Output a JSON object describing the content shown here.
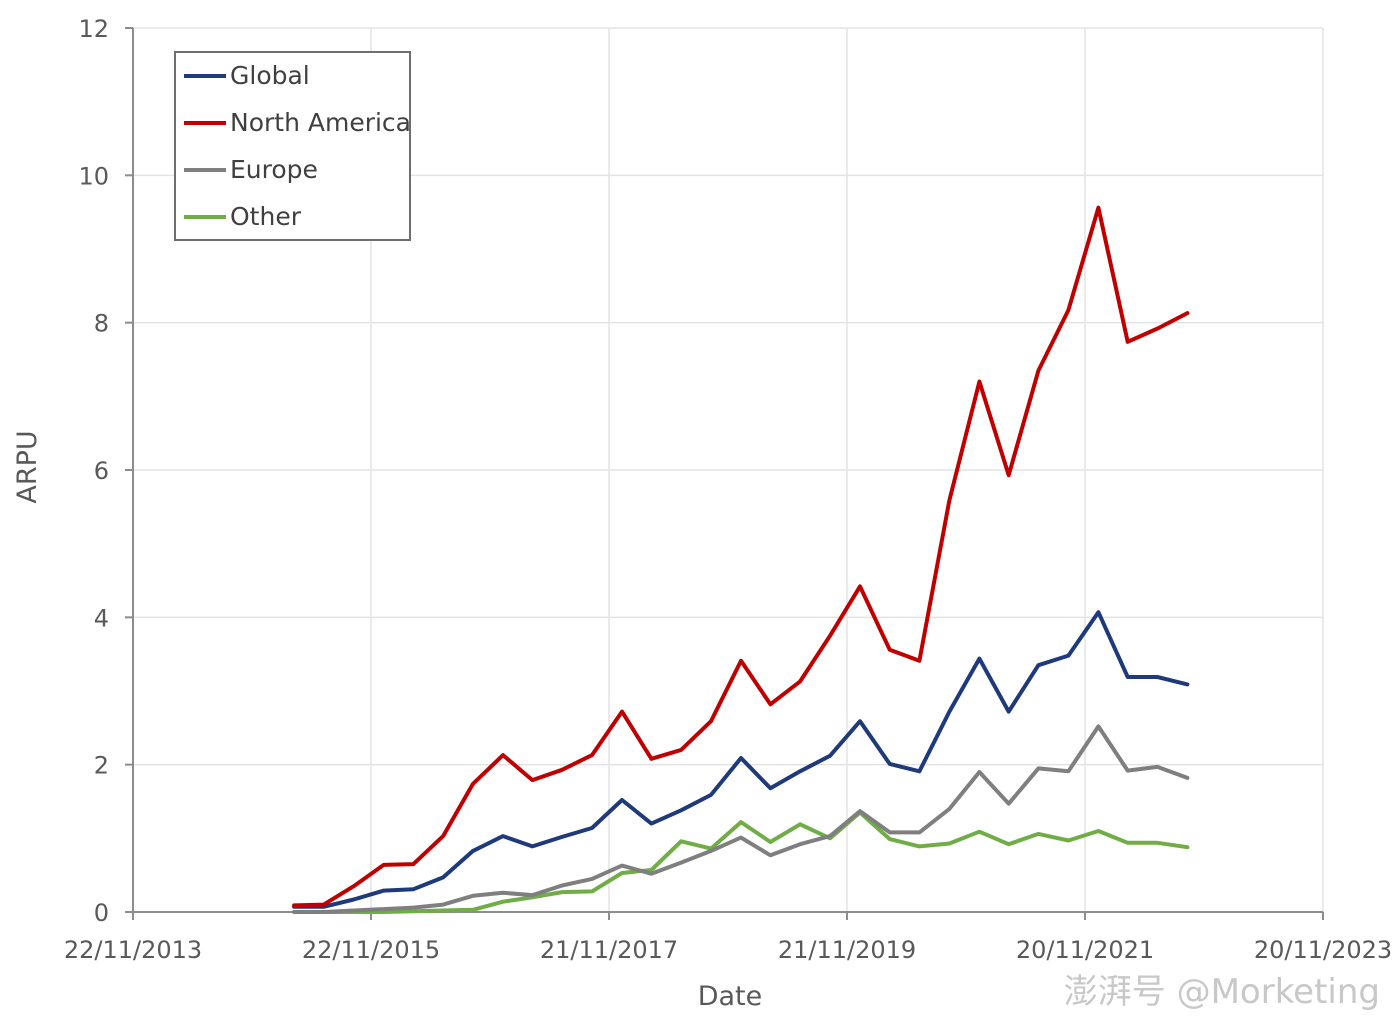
{
  "chart_data": {
    "type": "line",
    "xlabel": "Date",
    "ylabel": "ARPU",
    "x_axis": {
      "type": "date",
      "range": [
        "2013-11-22",
        "2023-11-20"
      ],
      "ticks": [
        "2013-11-22",
        "2015-11-22",
        "2017-11-21",
        "2019-11-21",
        "2021-11-20",
        "2023-11-20"
      ],
      "tick_labels": [
        "22/11/2013",
        "22/11/2015",
        "21/11/2017",
        "21/11/2019",
        "20/11/2021",
        "20/11/2023"
      ]
    },
    "ylim": [
      0,
      12
    ],
    "yticks": [
      0,
      2,
      4,
      6,
      8,
      10,
      12
    ],
    "grid": true,
    "legend_position": "top-left",
    "x": [
      "2015-03-31",
      "2015-06-30",
      "2015-09-30",
      "2015-12-31",
      "2016-03-31",
      "2016-06-30",
      "2016-09-30",
      "2016-12-31",
      "2017-03-31",
      "2017-06-30",
      "2017-09-30",
      "2017-12-31",
      "2018-03-31",
      "2018-06-30",
      "2018-09-30",
      "2018-12-31",
      "2019-03-31",
      "2019-06-30",
      "2019-09-30",
      "2019-12-31",
      "2020-03-31",
      "2020-06-30",
      "2020-09-30",
      "2020-12-31",
      "2021-03-31",
      "2021-06-30",
      "2021-09-30",
      "2021-12-31",
      "2022-03-31",
      "2022-06-30",
      "2022-09-30"
    ],
    "series": [
      {
        "name": "Global",
        "color": "#1f3a7a",
        "values": [
          0.07,
          0.07,
          0.17,
          0.29,
          0.31,
          0.47,
          0.83,
          1.03,
          0.89,
          1.02,
          1.14,
          1.52,
          1.2,
          1.38,
          1.59,
          2.09,
          1.68,
          1.91,
          2.12,
          2.59,
          2.01,
          1.91,
          2.72,
          3.44,
          2.72,
          3.35,
          3.48,
          4.07,
          3.19,
          3.19,
          3.09
        ]
      },
      {
        "name": "North America",
        "color": "#c00000",
        "values": [
          0.09,
          0.1,
          0.35,
          0.64,
          0.65,
          1.03,
          1.74,
          2.13,
          1.79,
          1.93,
          2.13,
          2.72,
          2.08,
          2.2,
          2.59,
          3.41,
          2.82,
          3.13,
          3.75,
          4.42,
          3.56,
          3.41,
          5.59,
          7.2,
          5.93,
          7.35,
          8.17,
          9.56,
          7.74,
          7.92,
          8.13
        ]
      },
      {
        "name": "Europe",
        "color": "#7f7f7f",
        "values": [
          0.0,
          0.0,
          0.02,
          0.04,
          0.06,
          0.1,
          0.22,
          0.26,
          0.23,
          0.36,
          0.45,
          0.63,
          0.52,
          0.67,
          0.83,
          1.01,
          0.77,
          0.92,
          1.03,
          1.37,
          1.08,
          1.08,
          1.4,
          1.9,
          1.47,
          1.95,
          1.91,
          2.52,
          1.92,
          1.97,
          1.82
        ]
      },
      {
        "name": "Other",
        "color": "#70ad47",
        "values": [
          0.0,
          0.0,
          0.0,
          0.0,
          0.01,
          0.02,
          0.03,
          0.14,
          0.2,
          0.27,
          0.28,
          0.53,
          0.57,
          0.96,
          0.86,
          1.22,
          0.95,
          1.19,
          1.0,
          1.35,
          0.99,
          0.89,
          0.93,
          1.09,
          0.92,
          1.06,
          0.97,
          1.1,
          0.94,
          0.94,
          0.88
        ]
      }
    ]
  },
  "watermark": {
    "text": "澎湃号 @Morketing"
  }
}
